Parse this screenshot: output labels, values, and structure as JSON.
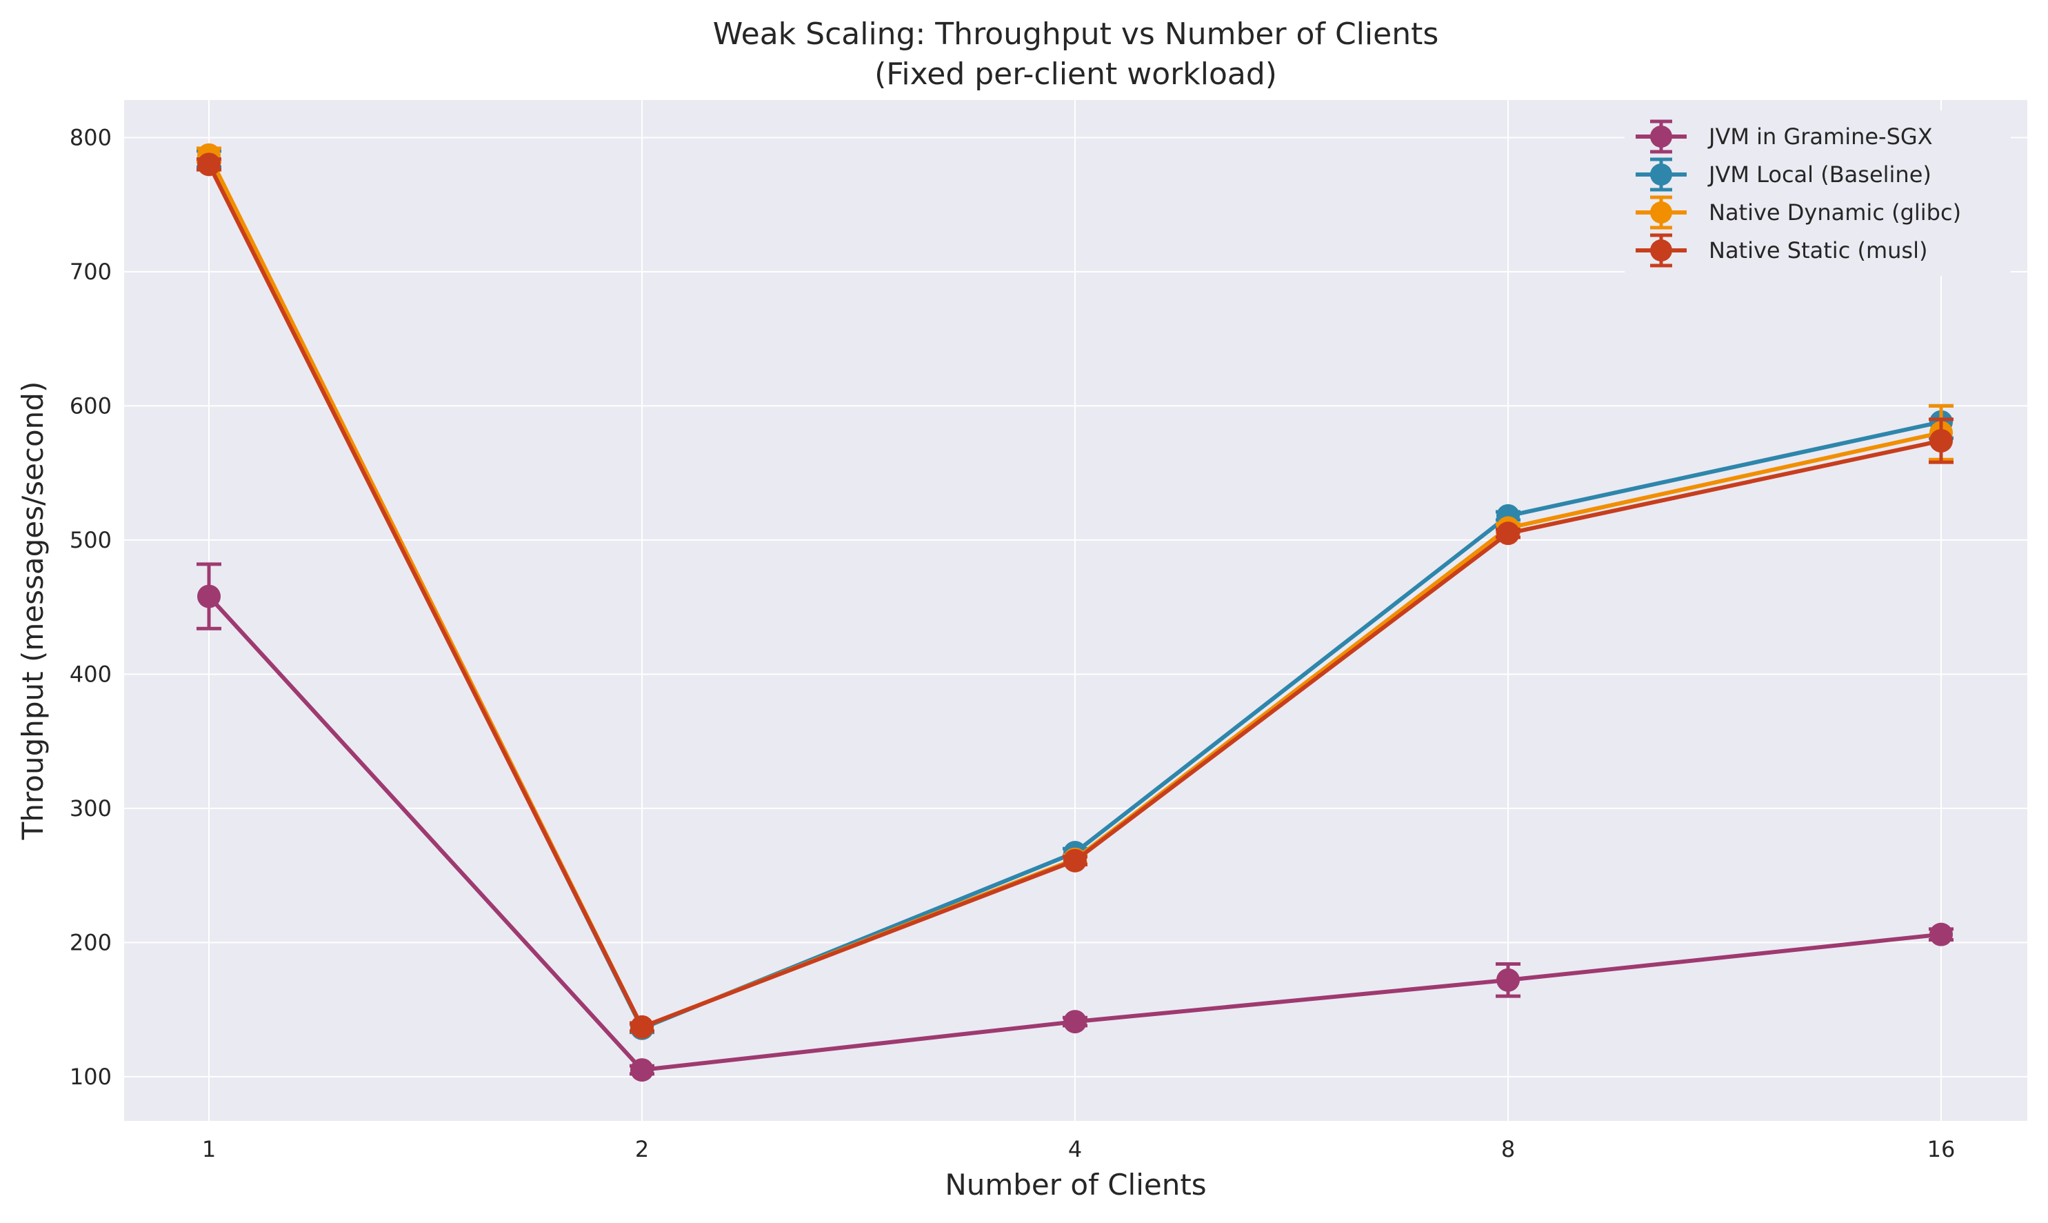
{
  "chart_data": {
    "type": "line",
    "title": "Weak Scaling: Throughput vs Number of Clients",
    "subtitle": "(Fixed per-client workload)",
    "xlabel": "Number of Clients",
    "ylabel": "Throughput (messages/second)",
    "x": [
      1,
      2,
      4,
      8,
      16
    ],
    "x_tick_labels": [
      "1",
      "2",
      "4",
      "8",
      "16"
    ],
    "x_scale": "categorical (equally spaced)",
    "y_ticks": [
      100,
      200,
      300,
      400,
      500,
      600,
      700,
      800
    ],
    "y_tick_labels": [
      "100",
      "200",
      "300",
      "400",
      "500",
      "600",
      "700",
      "800"
    ],
    "ylim": [
      67,
      828
    ],
    "grid": true,
    "legend_position": "top-right",
    "series": [
      {
        "name": "JVM in Gramine-SGX",
        "color": "#9e3a70",
        "values": [
          458,
          105,
          141,
          172,
          206
        ],
        "errors": [
          24,
          3,
          3,
          12,
          4
        ]
      },
      {
        "name": "JVM Local (Baseline)",
        "color": "#2e86ab",
        "values": [
          784,
          136,
          267,
          518,
          588
        ],
        "errors": [
          6,
          3,
          3,
          3,
          12
        ]
      },
      {
        "name": "Native Dynamic (glibc)",
        "color": "#f18f01",
        "values": [
          787,
          137,
          262,
          509,
          580
        ],
        "errors": [
          5,
          3,
          3,
          3,
          20
        ]
      },
      {
        "name": "Native Static (musl)",
        "color": "#c73e1d",
        "values": [
          780,
          137,
          261,
          505,
          574
        ],
        "errors": [
          4,
          3,
          3,
          3,
          16
        ]
      }
    ]
  }
}
